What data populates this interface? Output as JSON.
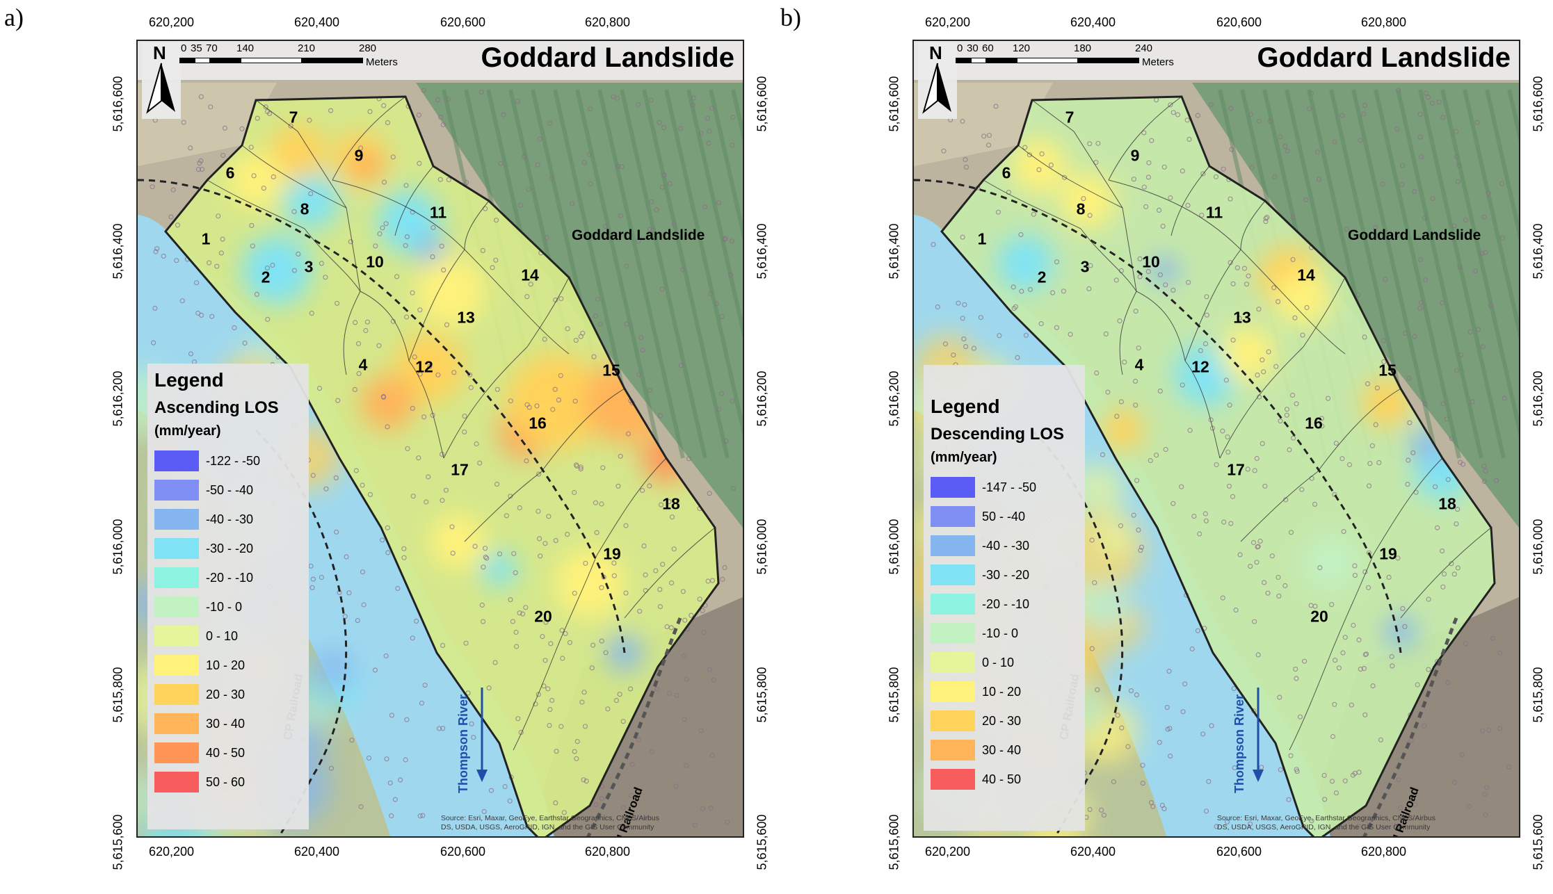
{
  "panels": [
    {
      "tag": "a)",
      "title": "Goddard Landslide",
      "north": "N",
      "scale": {
        "labels": [
          "0",
          "35",
          "70",
          "140",
          "210",
          "280"
        ],
        "unit": "Meters"
      },
      "legend": {
        "title": "Legend",
        "subtitle": "Ascending LOS",
        "unit": "(mm/year)",
        "items": [
          {
            "label": "-122 - -50",
            "color": "#5b5cf5"
          },
          {
            "label": "-50 - -40",
            "color": "#7f8ff3"
          },
          {
            "label": "-40 - -30",
            "color": "#86b6f0"
          },
          {
            "label": "-30 - -20",
            "color": "#7fe3f5"
          },
          {
            "label": "-20 - -10",
            "color": "#8ef2e0"
          },
          {
            "label": "-10 - 0",
            "color": "#c2f2c2"
          },
          {
            "label": "0 - 10",
            "color": "#e6f59a"
          },
          {
            "label": "10 - 20",
            "color": "#fff27a"
          },
          {
            "label": "20 - 30",
            "color": "#ffd25a"
          },
          {
            "label": "30 - 40",
            "color": "#ffb45a"
          },
          {
            "label": "40 - 50",
            "color": "#ff9658"
          },
          {
            "label": "50 - 60",
            "color": "#f95c5c"
          }
        ]
      },
      "ticks_x": [
        "620,200",
        "620,400",
        "620,600",
        "620,800"
      ],
      "ticks_y": [
        "5,616,600",
        "5,616,400",
        "5,616,200",
        "5,616,000",
        "5,615,800",
        "5,615,600"
      ],
      "zones": [
        "1",
        "2",
        "3",
        "4",
        "6",
        "7",
        "8",
        "9",
        "10",
        "11",
        "12",
        "13",
        "14",
        "15",
        "16",
        "17",
        "18",
        "19",
        "20"
      ],
      "slide_label": "Goddard Landslide",
      "river_label": "Thompson River",
      "cp_label": "CP Railroad",
      "cn_label": "CN Railroad",
      "source_line1": "Source: Esri, Maxar, GeoEye, Earthstar Geographics, CNES/Airbus",
      "source_line2": "DS, USDA, USGS, AeroGRID, IGN, and the GIS User Community"
    },
    {
      "tag": "b)",
      "title": "Goddard Landslide",
      "north": "N",
      "scale": {
        "labels": [
          "0",
          "30",
          "60",
          "120",
          "180",
          "240"
        ],
        "unit": "Meters"
      },
      "legend": {
        "title": "Legend",
        "subtitle": "Descending LOS",
        "unit": "(mm/year)",
        "items": [
          {
            "label": "-147 - -50",
            "color": "#5b5cf5"
          },
          {
            "label": "50 - -40",
            "color": "#7f8ff3"
          },
          {
            "label": "-40 - -30",
            "color": "#86b6f0"
          },
          {
            "label": "-30 - -20",
            "color": "#7fe3f5"
          },
          {
            "label": "-20 - -10",
            "color": "#8ef2e0"
          },
          {
            "label": "-10 - 0",
            "color": "#c2f2c2"
          },
          {
            "label": "0 - 10",
            "color": "#e6f59a"
          },
          {
            "label": "10 - 20",
            "color": "#fff27a"
          },
          {
            "label": "20 - 30",
            "color": "#ffd25a"
          },
          {
            "label": "30 - 40",
            "color": "#ffb45a"
          },
          {
            "label": "40 - 50",
            "color": "#f95c5c"
          }
        ]
      },
      "ticks_x": [
        "620,200",
        "620,400",
        "620,600",
        "620,800"
      ],
      "ticks_y": [
        "5,616,600",
        "5,616,400",
        "5,616,200",
        "5,616,000",
        "5,615,800",
        "5,615,600"
      ],
      "zones": [
        "1",
        "2",
        "3",
        "4",
        "6",
        "7",
        "8",
        "9",
        "10",
        "11",
        "12",
        "13",
        "14",
        "15",
        "16",
        "17",
        "18",
        "19",
        "20"
      ],
      "slide_label": "Goddard Landslide",
      "river_label": "Thompson River",
      "cp_label": "CP Railroad",
      "cn_label": "CN Railroad",
      "source_line1": "Source: Esri, Maxar, GeoEye, Earthstar Geographics, CNES/Airbus",
      "source_line2": "DS, USDA, USGS, AeroGRID, IGN, and the GIS User Community"
    }
  ]
}
